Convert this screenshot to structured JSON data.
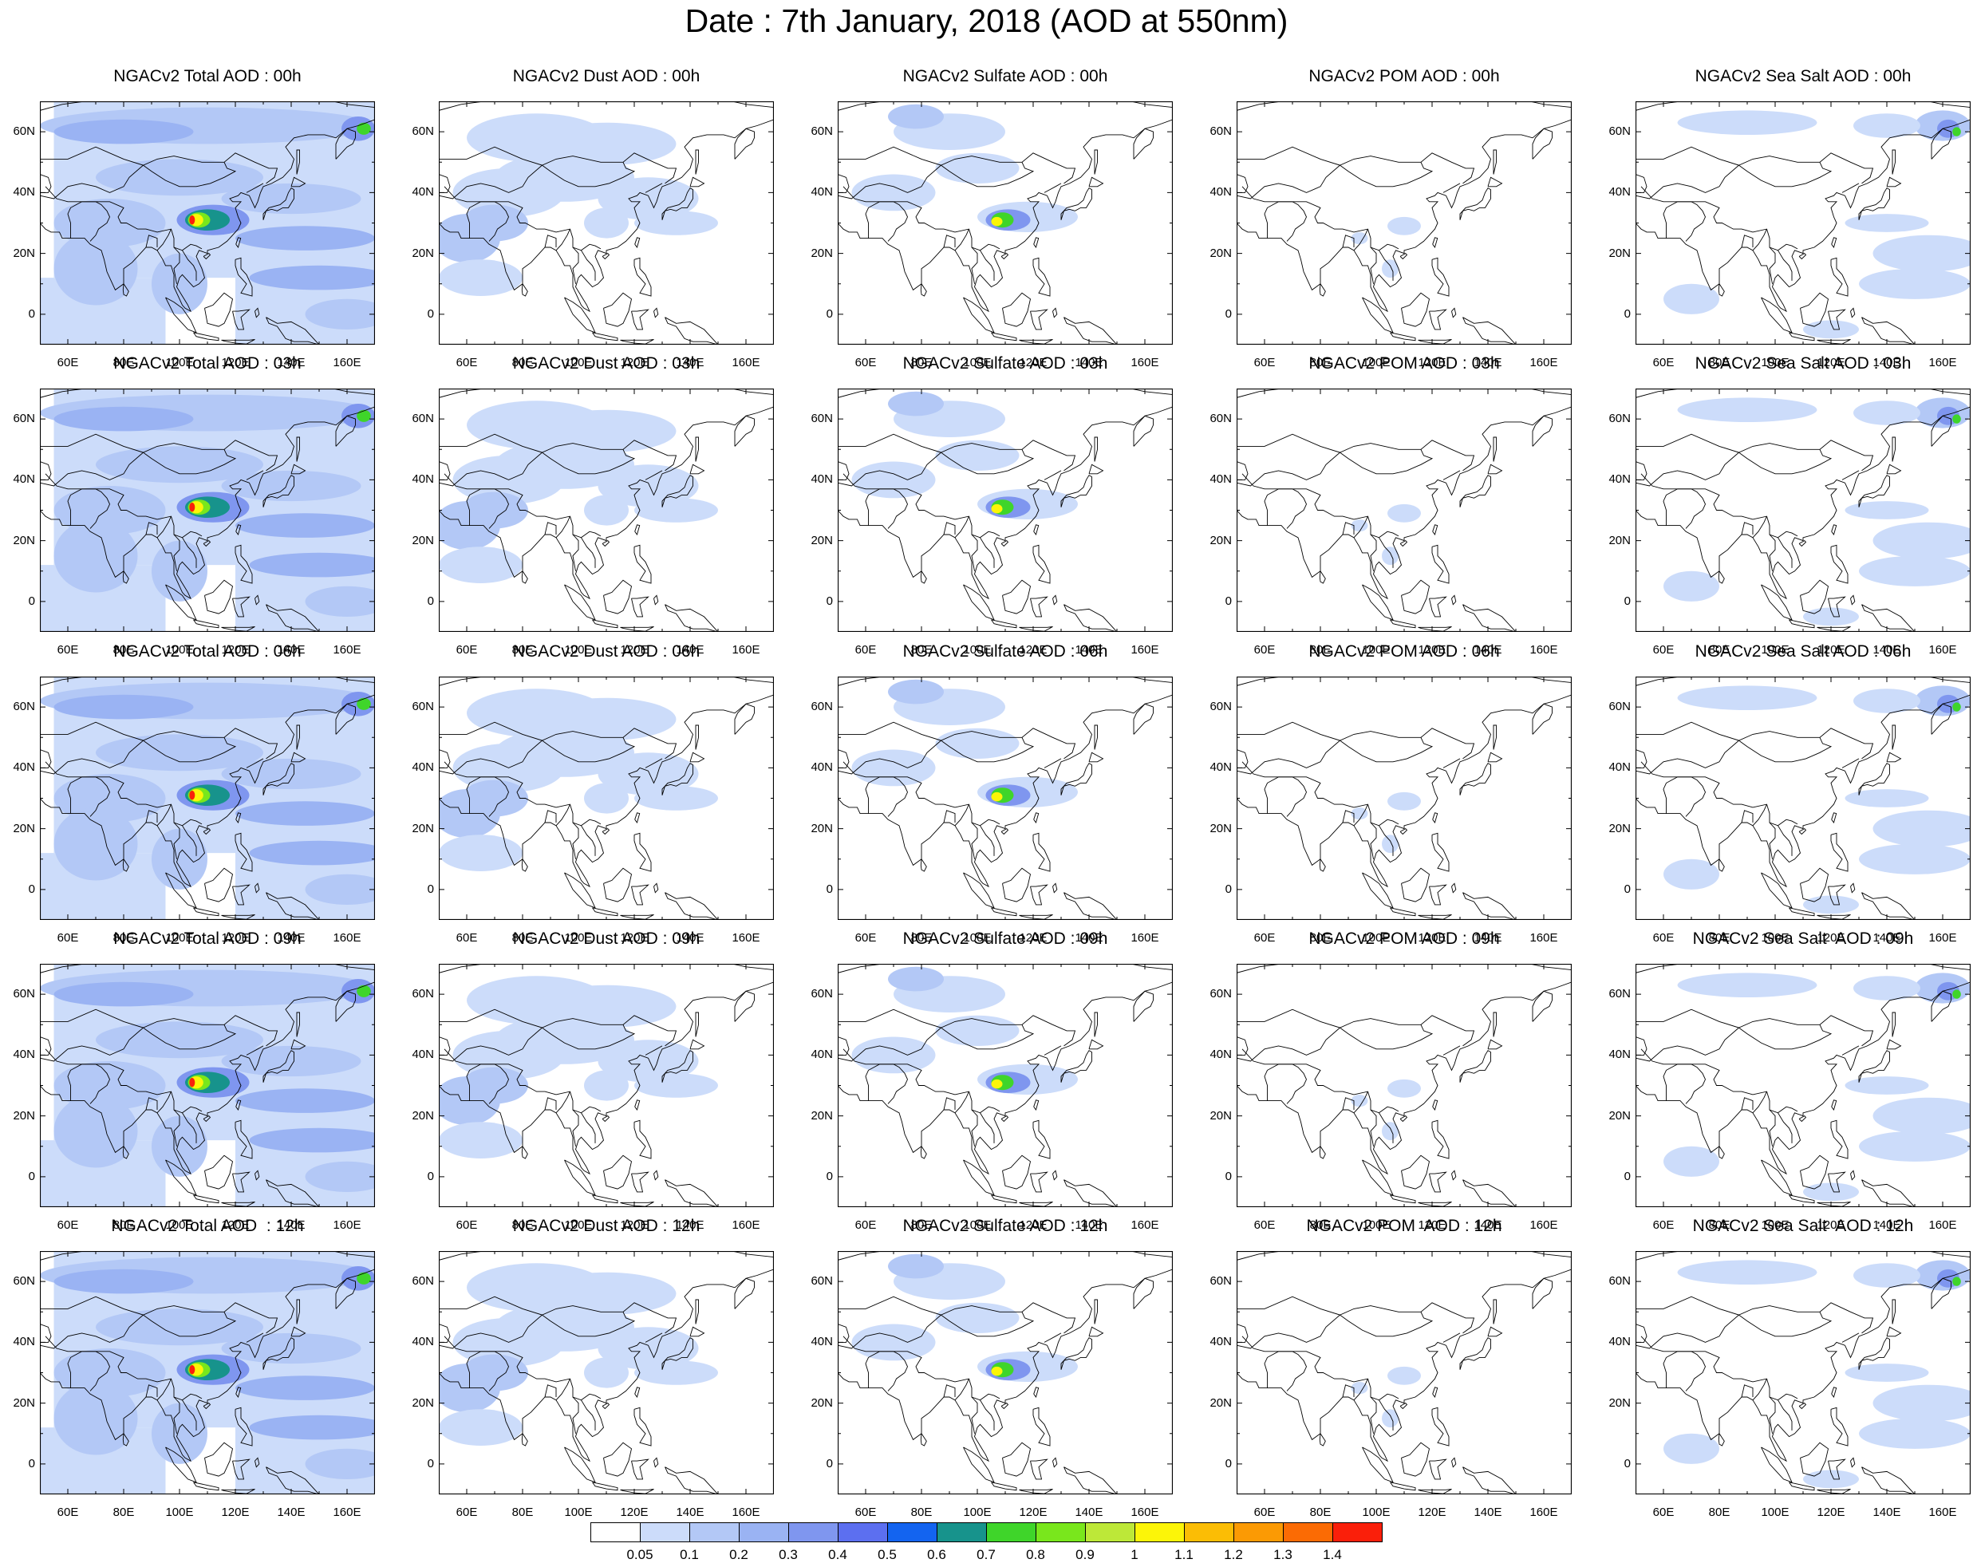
{
  "title": "Date : 7th January, 2018 (AOD at 550nm)",
  "colorbar": {
    "levels": [
      "0.05",
      "0.1",
      "0.2",
      "0.3",
      "0.4",
      "0.5",
      "0.6",
      "0.7",
      "0.8",
      "0.9",
      "1",
      "1.1",
      "1.2",
      "1.3",
      "1.4"
    ],
    "colors": [
      "#ffffff",
      "#ccdcfa",
      "#b3c8f6",
      "#9ab3f3",
      "#7f96ef",
      "#5c6ff0",
      "#1364f0",
      "#17938c",
      "#3fd52a",
      "#79e71c",
      "#bde838",
      "#fcf508",
      "#fbbd05",
      "#fb9a04",
      "#fb6b04",
      "#fa1f0a"
    ]
  },
  "lat_labels": [
    "60N",
    "40N",
    "20N",
    "0"
  ],
  "lon_labels": [
    "60E",
    "80E",
    "100E",
    "120E",
    "140E",
    "160E"
  ],
  "panels": [
    {
      "title": "NGACv2 Total AOD : 00h",
      "type": "total"
    },
    {
      "title": "NGACv2 Dust AOD : 00h",
      "type": "dust"
    },
    {
      "title": "NGACv2 Sulfate AOD : 00h",
      "type": "sulfate"
    },
    {
      "title": "NGACv2 POM AOD : 00h",
      "type": "pom"
    },
    {
      "title": "NGACv2 Sea Salt AOD : 00h",
      "type": "seasalt"
    },
    {
      "title": "NGACv2 Total AOD : 03h",
      "type": "total"
    },
    {
      "title": "NGACv2 Dust AOD : 03h",
      "type": "dust"
    },
    {
      "title": "NGACv2 Sulfate AOD : 03h",
      "type": "sulfate"
    },
    {
      "title": "NGACv2 POM AOD : 03h",
      "type": "pom"
    },
    {
      "title": "NGACv2 Sea Salt AOD : 03h",
      "type": "seasalt"
    },
    {
      "title": "NGACv2 Total AOD : 06h",
      "type": "total"
    },
    {
      "title": "NGACv2 Dust AOD : 06h",
      "type": "dust"
    },
    {
      "title": "NGACv2 Sulfate AOD : 06h",
      "type": "sulfate"
    },
    {
      "title": "NGACv2 POM AOD : 06h",
      "type": "pom"
    },
    {
      "title": "NGACv2 Sea Salt AOD : 06h",
      "type": "seasalt"
    },
    {
      "title": "NGACv2 Total AOD : 09h",
      "type": "total"
    },
    {
      "title": "NGACv2 Dust AOD : 09h",
      "type": "dust"
    },
    {
      "title": "NGACv2 Sulfate AOD : 09h",
      "type": "sulfate"
    },
    {
      "title": "NGACv2 POM AOD : 09h",
      "type": "pom"
    },
    {
      "title": "NGACv2 Sea Salt  AOD : 09h",
      "type": "seasalt"
    },
    {
      "title": "NGACv2 Total AOD  : 12h",
      "type": "total"
    },
    {
      "title": "NGACv2 Dust AOD : 12h",
      "type": "dust"
    },
    {
      "title": "NGACv2 Sulfate AOD : 12h",
      "type": "sulfate"
    },
    {
      "title": "NGACv2 POM  AOD : 12h",
      "type": "pom"
    },
    {
      "title": "NGACv2 Sea Salt  AOD : 12h",
      "type": "seasalt"
    }
  ]
}
